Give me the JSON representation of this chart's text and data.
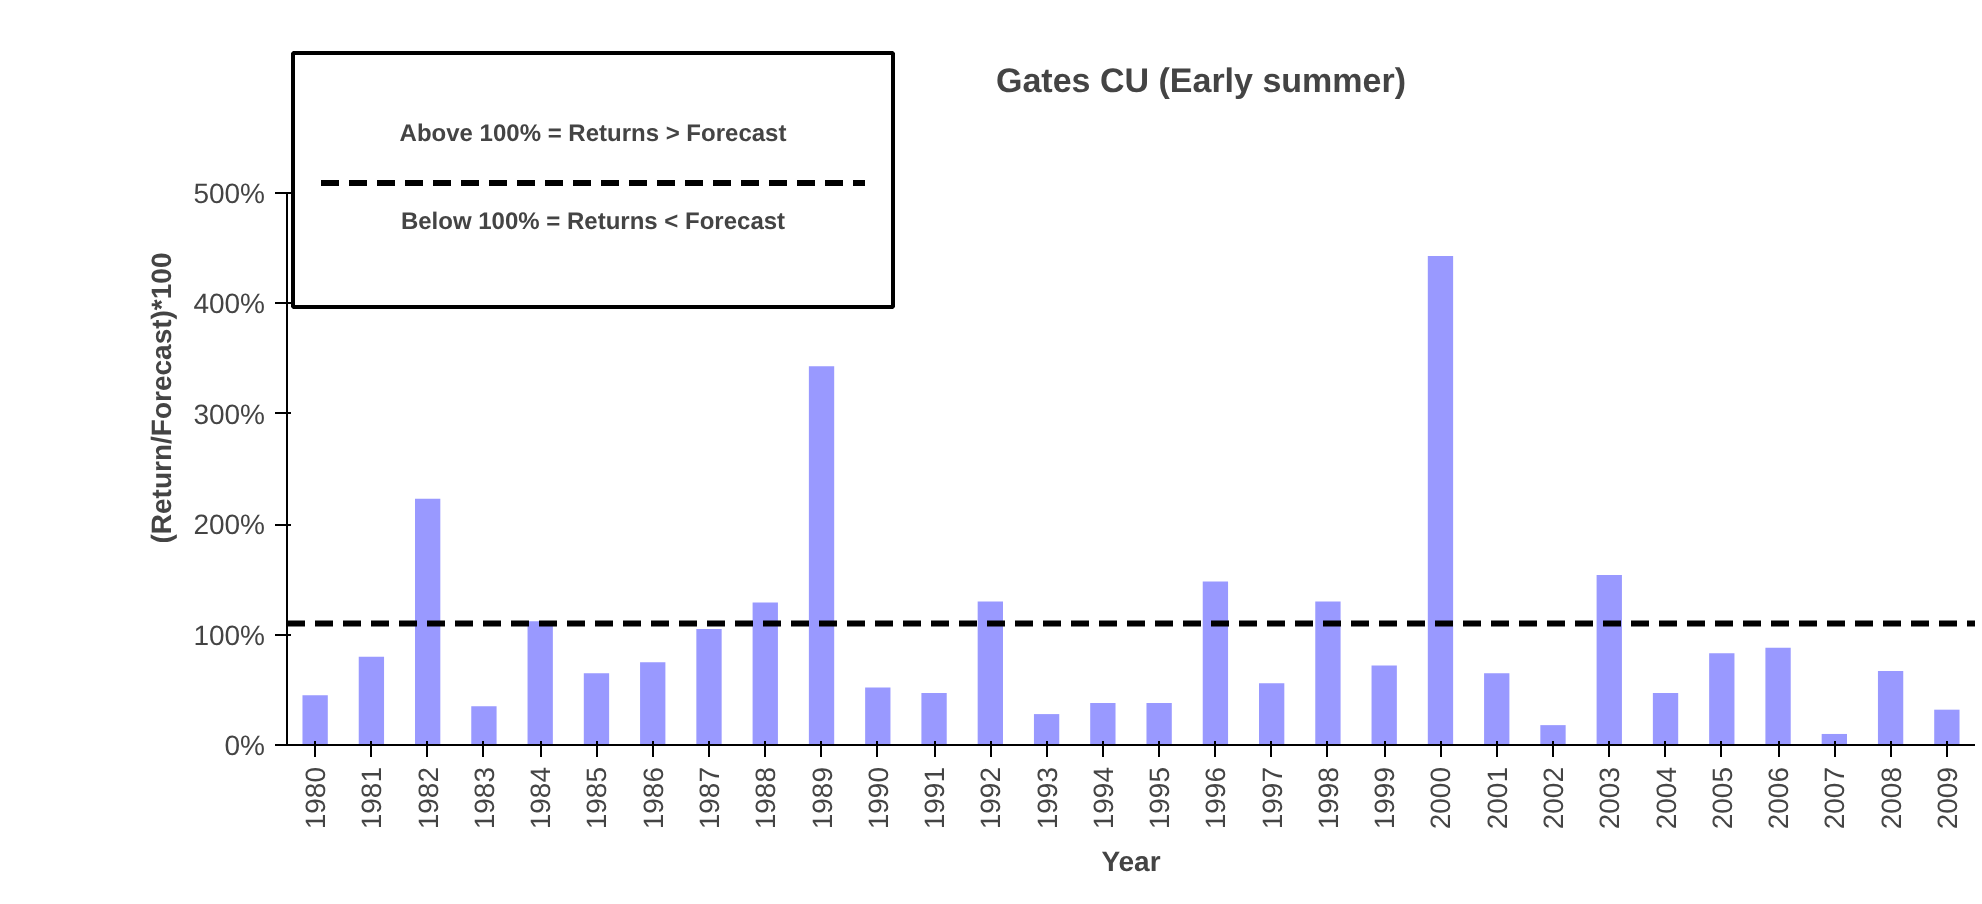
{
  "chart_data": {
    "type": "bar",
    "title": "Gates CU (Early summer)",
    "xlabel": "Year",
    "ylabel": "(Return/Forecast)*100",
    "categories": [
      "1980",
      "1981",
      "1982",
      "1983",
      "1984",
      "1985",
      "1986",
      "1987",
      "1988",
      "1989",
      "1990",
      "1991",
      "1992",
      "1993",
      "1994",
      "1995",
      "1996",
      "1997",
      "1998",
      "1999",
      "2000",
      "2001",
      "2002",
      "2003",
      "2004",
      "2005",
      "2006",
      "2007",
      "2008",
      "2009"
    ],
    "values": [
      45,
      80,
      223,
      35,
      112,
      65,
      75,
      105,
      129,
      343,
      52,
      47,
      130,
      28,
      38,
      38,
      148,
      56,
      130,
      72,
      443,
      65,
      18,
      154,
      47,
      83,
      88,
      10,
      67,
      32
    ],
    "color": "#9999ff",
    "ylim": [
      0,
      500
    ],
    "yticks": [
      {
        "value": 0,
        "label": "0%"
      },
      {
        "value": 100,
        "label": "100%"
      },
      {
        "value": 200,
        "label": "200%"
      },
      {
        "value": 300,
        "label": "300%"
      },
      {
        "value": 400,
        "label": "400%"
      },
      {
        "value": 500,
        "label": "500%"
      }
    ],
    "ref_lines": [
      {
        "axis": "y",
        "value": 110,
        "color": "#000000",
        "line_style": "dashed"
      }
    ],
    "annotations": [
      "Above 100% = Returns > Forecast",
      "Below 100% = Returns < Forecast"
    ],
    "grid": false
  }
}
